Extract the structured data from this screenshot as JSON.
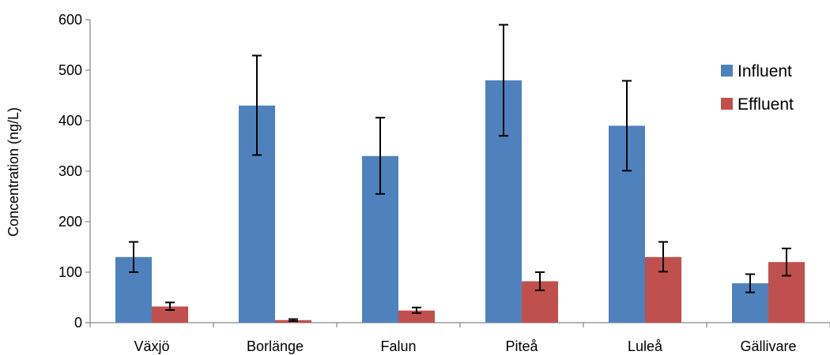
{
  "chart_data": {
    "type": "bar",
    "title": "",
    "xlabel": "",
    "ylabel": "Concentration (ng/L)",
    "ylim": [
      0,
      600
    ],
    "yticks": [
      0,
      100,
      200,
      300,
      400,
      500,
      600
    ],
    "grid": false,
    "legend_position": "right",
    "categories": [
      "Växjö",
      "Borlänge",
      "Falun",
      "Piteå",
      "Luleå",
      "Gällivare"
    ],
    "series": [
      {
        "name": "Influent",
        "color": "#4f81bd",
        "values": [
          130,
          430,
          330,
          480,
          390,
          78
        ],
        "error_low": [
          100,
          332,
          255,
          370,
          301,
          60
        ],
        "error_high": [
          160,
          529,
          406,
          590,
          479,
          96
        ]
      },
      {
        "name": "Effluent",
        "color": "#c0504d",
        "values": [
          32,
          5,
          24,
          82,
          130,
          120
        ],
        "error_low": [
          25,
          3,
          19,
          64,
          101,
          93
        ],
        "error_high": [
          40,
          7,
          30,
          100,
          160,
          147
        ]
      }
    ]
  }
}
